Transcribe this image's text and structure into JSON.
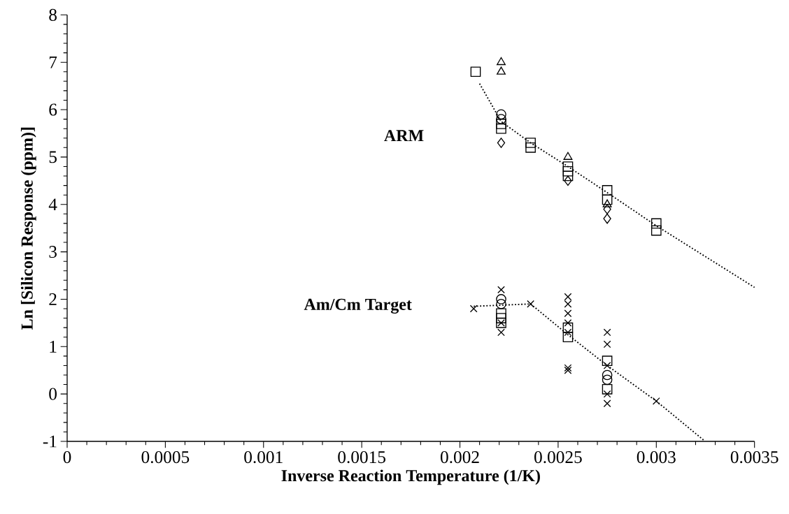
{
  "chart_data": {
    "type": "scatter",
    "xlabel": "Inverse Reaction Temperature (1/K)",
    "ylabel": "Ln [Silicon Response (ppm)]",
    "xlim": [
      0,
      0.0035
    ],
    "ylim": [
      -1,
      8
    ],
    "xticks": [
      0,
      0.0005,
      0.001,
      0.0015,
      0.002,
      0.0025,
      0.003,
      0.0035
    ],
    "yticks": [
      -1,
      0,
      1,
      2,
      3,
      4,
      5,
      6,
      7,
      8
    ],
    "grid": false,
    "series": [
      {
        "color": "#000000",
        "marker": "square",
        "x": [
          0.00208,
          0.00221,
          0.00221,
          0.00236,
          0.00236,
          0.00255,
          0.00255,
          0.00255,
          0.00275,
          0.00275,
          0.003,
          0.003
        ],
        "values": [
          6.8,
          5.7,
          5.6,
          5.3,
          5.2,
          4.8,
          4.7,
          4.6,
          4.3,
          4.1,
          3.6,
          3.45
        ]
      },
      {
        "color": "#000000",
        "marker": "triangle",
        "x": [
          0.00221,
          0.00221,
          0.00255,
          0.00275
        ],
        "values": [
          7.0,
          6.8,
          5.0,
          4.0
        ]
      },
      {
        "color": "#000000",
        "marker": "circle",
        "x": [
          0.00221,
          0.00221
        ],
        "values": [
          5.9,
          5.8
        ]
      },
      {
        "color": "#000000",
        "marker": "diamond",
        "x": [
          0.00221,
          0.00255,
          0.00275,
          0.00275
        ],
        "values": [
          5.3,
          4.5,
          3.9,
          3.7
        ]
      },
      {
        "type": "line",
        "color": "#000000",
        "line_style": "dotted",
        "marker": "none",
        "x": [
          0.0021,
          0.00221,
          0.00236,
          0.00255,
          0.00275,
          0.003,
          0.0035
        ],
        "values": [
          6.55,
          5.75,
          5.3,
          4.8,
          4.25,
          3.55,
          2.25
        ]
      },
      {
        "color": "#000000",
        "marker": "cross",
        "x": [
          0.00207,
          0.00221,
          0.00221,
          0.00236,
          0.00255,
          0.00255,
          0.00255,
          0.00275,
          0.00275,
          0.00275,
          0.003
        ],
        "values": [
          1.8,
          1.5,
          1.3,
          1.9,
          1.3,
          0.55,
          0.5,
          0.6,
          0.0,
          -0.2,
          -0.15
        ]
      },
      {
        "color": "#000000",
        "marker": "cross",
        "x": [
          0.00221,
          0.00255,
          0.00255,
          0.00255,
          0.00255,
          0.00275,
          0.00275
        ],
        "values": [
          2.2,
          2.05,
          1.9,
          1.7,
          1.5,
          1.3,
          1.05
        ]
      },
      {
        "color": "#000000",
        "marker": "square",
        "x": [
          0.00221,
          0.00221,
          0.00221,
          0.00255,
          0.00255,
          0.00275,
          0.00275
        ],
        "values": [
          1.7,
          1.6,
          1.5,
          1.4,
          1.2,
          0.7,
          0.1
        ]
      },
      {
        "color": "#000000",
        "marker": "circle",
        "x": [
          0.00221,
          0.00221,
          0.00275,
          0.00275
        ],
        "values": [
          2.0,
          1.9,
          0.4,
          0.3
        ]
      },
      {
        "type": "line",
        "color": "#000000",
        "line_style": "dotted",
        "marker": "none",
        "x": [
          0.00207,
          0.00236,
          0.00255,
          0.00275,
          0.003,
          0.00324
        ],
        "values": [
          1.85,
          1.9,
          1.25,
          0.6,
          -0.15,
          -0.97
        ]
      }
    ],
    "annotations": [
      "ARM",
      "Am/Cm Target"
    ]
  }
}
